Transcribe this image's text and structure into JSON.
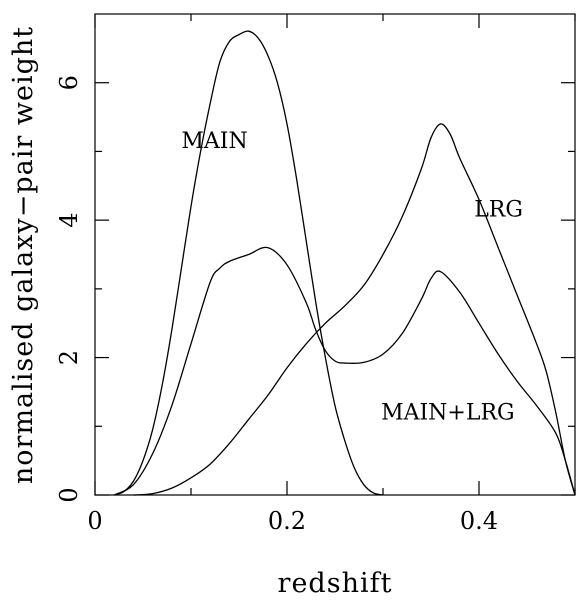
{
  "chart_data": {
    "type": "line",
    "xlabel": "redshift",
    "ylabel": "normalised galaxy−pair weight",
    "xlim": [
      0,
      0.5
    ],
    "ylim": [
      0,
      7
    ],
    "x_major_ticks": [
      0,
      0.2,
      0.4
    ],
    "x_major_tick_labels": [
      "0",
      "0.2",
      "0.4"
    ],
    "x_minor_ticks": [
      0.1,
      0.3,
      0.5
    ],
    "y_major_ticks": [
      0,
      2,
      4,
      6
    ],
    "y_major_tick_labels": [
      "0",
      "2",
      "4",
      "6"
    ],
    "y_minor_ticks": [
      1,
      3,
      5
    ],
    "grid": false,
    "series": [
      {
        "name": "MAIN",
        "label_at": [
          0.09,
          5.05
        ],
        "x": [
          0.02,
          0.03,
          0.04,
          0.05,
          0.06,
          0.07,
          0.08,
          0.09,
          0.1,
          0.11,
          0.12,
          0.13,
          0.14,
          0.15,
          0.16,
          0.17,
          0.18,
          0.19,
          0.2,
          0.21,
          0.22,
          0.23,
          0.24,
          0.25,
          0.26,
          0.27,
          0.28,
          0.29,
          0.3
        ],
        "values": [
          0.0,
          0.05,
          0.2,
          0.5,
          0.95,
          1.6,
          2.4,
          3.3,
          4.2,
          5.0,
          5.7,
          6.3,
          6.6,
          6.7,
          6.75,
          6.65,
          6.4,
          6.0,
          5.4,
          4.6,
          3.7,
          2.8,
          2.0,
          1.3,
          0.8,
          0.4,
          0.15,
          0.03,
          0.0
        ]
      },
      {
        "name": "LRG",
        "label_at": [
          0.395,
          4.05
        ],
        "x": [
          0.04,
          0.06,
          0.08,
          0.1,
          0.12,
          0.14,
          0.16,
          0.18,
          0.2,
          0.22,
          0.24,
          0.26,
          0.28,
          0.3,
          0.32,
          0.34,
          0.35,
          0.36,
          0.37,
          0.38,
          0.4,
          0.42,
          0.44,
          0.46,
          0.47,
          0.48,
          0.49,
          0.5
        ],
        "values": [
          0.0,
          0.02,
          0.1,
          0.25,
          0.45,
          0.75,
          1.1,
          1.45,
          1.85,
          2.2,
          2.5,
          2.75,
          3.05,
          3.5,
          4.05,
          4.75,
          5.2,
          5.4,
          5.25,
          4.9,
          4.3,
          3.6,
          2.9,
          2.2,
          1.8,
          1.2,
          0.5,
          0.0
        ]
      },
      {
        "name": "MAIN+LRG",
        "label_at": [
          0.298,
          1.1
        ],
        "x": [
          0.02,
          0.04,
          0.06,
          0.08,
          0.1,
          0.12,
          0.13,
          0.14,
          0.16,
          0.18,
          0.2,
          0.22,
          0.23,
          0.24,
          0.25,
          0.26,
          0.28,
          0.3,
          0.32,
          0.34,
          0.35,
          0.36,
          0.38,
          0.4,
          0.42,
          0.44,
          0.46,
          0.48,
          0.49,
          0.5
        ],
        "values": [
          0.0,
          0.15,
          0.6,
          1.3,
          2.2,
          3.1,
          3.3,
          3.4,
          3.5,
          3.6,
          3.35,
          2.8,
          2.4,
          2.1,
          1.95,
          1.92,
          1.93,
          2.05,
          2.35,
          2.85,
          3.15,
          3.25,
          2.95,
          2.5,
          2.05,
          1.65,
          1.3,
          0.9,
          0.5,
          0.0
        ]
      }
    ]
  }
}
